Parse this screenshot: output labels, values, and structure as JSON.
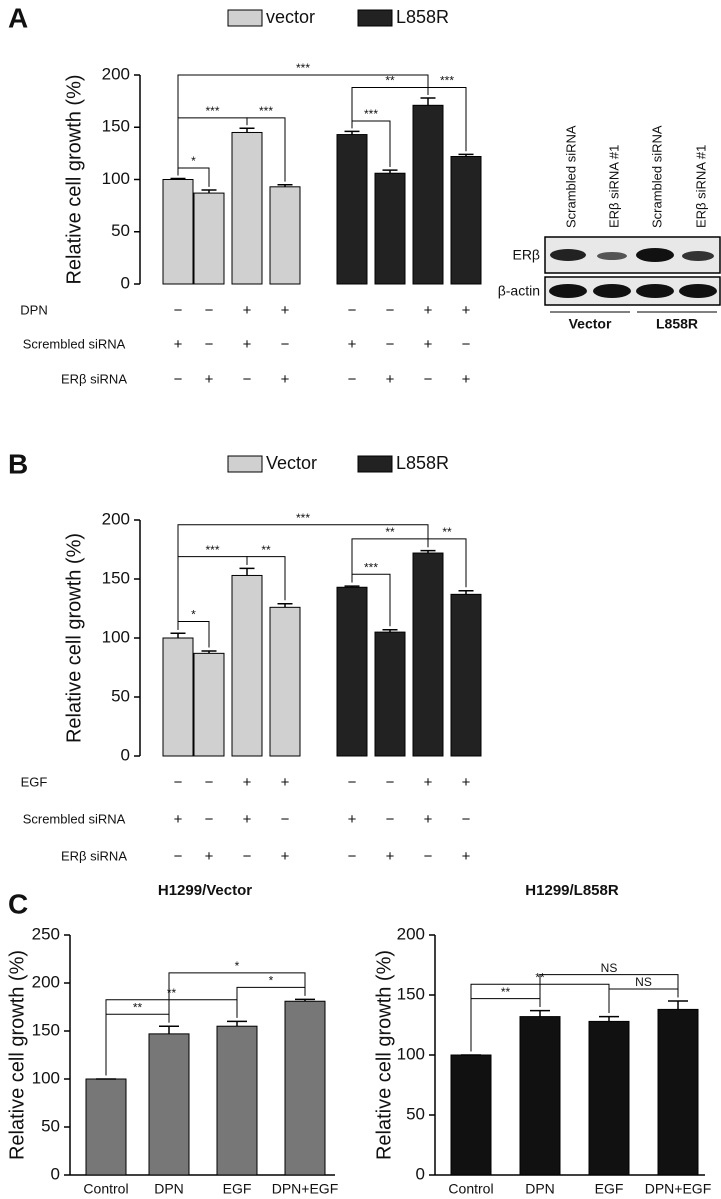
{
  "chart_data": [
    {
      "type": "bar",
      "panel_label": "A",
      "ylabel": "Relative cell growth (%)",
      "ylim": [
        0,
        200
      ],
      "yticks": [
        0,
        50,
        100,
        150,
        200
      ],
      "series": [
        {
          "name": "vector",
          "color": "#d0d0d0",
          "values": [
            100,
            87,
            145,
            93,
            null,
            null,
            null,
            null
          ],
          "errors": [
            1,
            3,
            4,
            2,
            null,
            null,
            null,
            null
          ]
        },
        {
          "name": "L858R",
          "color": "#222222",
          "values": [
            null,
            null,
            null,
            null,
            143,
            106,
            171,
            122
          ],
          "errors": [
            null,
            null,
            null,
            null,
            3,
            3,
            7,
            2
          ]
        }
      ],
      "annotations": [
        {
          "text": "*",
          "from": 0,
          "to": 1
        },
        {
          "text": "***",
          "from": 0,
          "to": 2
        },
        {
          "text": "***",
          "from": 2,
          "to": 3
        },
        {
          "text": "***",
          "from": 4,
          "to": 5
        },
        {
          "text": "**",
          "from": 4,
          "to": 6
        },
        {
          "text": "***",
          "from": 6,
          "to": 7
        },
        {
          "text": "***",
          "from": 0,
          "to": 6
        }
      ],
      "conditions": [
        {
          "label": "DPN",
          "signs": [
            "−",
            "−",
            "+",
            "+",
            "−",
            "−",
            "+",
            "+"
          ]
        },
        {
          "label": "Scrembled siRNA",
          "signs": [
            "+",
            "−",
            "+",
            "−",
            "+",
            "−",
            "+",
            "−"
          ]
        },
        {
          "label": "ERβ siRNA",
          "signs": [
            "−",
            "+",
            "−",
            "+",
            "−",
            "+",
            "−",
            "+"
          ]
        }
      ]
    },
    {
      "type": "bar",
      "panel_label": "B",
      "ylabel": "Relative cell growth (%)",
      "ylim": [
        0,
        200
      ],
      "yticks": [
        0,
        50,
        100,
        150,
        200
      ],
      "series": [
        {
          "name": "Vector",
          "color": "#d0d0d0",
          "values": [
            100,
            87,
            153,
            126,
            null,
            null,
            null,
            null
          ],
          "errors": [
            4,
            2,
            6,
            3,
            null,
            null,
            null,
            null
          ]
        },
        {
          "name": "L858R",
          "color": "#222222",
          "values": [
            null,
            null,
            null,
            null,
            143,
            105,
            172,
            137
          ],
          "errors": [
            null,
            null,
            null,
            null,
            1,
            2,
            2,
            3
          ]
        }
      ],
      "annotations": [
        {
          "text": "*",
          "from": 0,
          "to": 1
        },
        {
          "text": "***",
          "from": 0,
          "to": 2
        },
        {
          "text": "**",
          "from": 2,
          "to": 3
        },
        {
          "text": "***",
          "from": 4,
          "to": 5
        },
        {
          "text": "**",
          "from": 4,
          "to": 6
        },
        {
          "text": "**",
          "from": 6,
          "to": 7
        },
        {
          "text": "***",
          "from": 0,
          "to": 6
        }
      ],
      "conditions": [
        {
          "label": "EGF",
          "signs": [
            "−",
            "−",
            "+",
            "+",
            "−",
            "−",
            "+",
            "+"
          ]
        },
        {
          "label": "Scrembled siRNA",
          "signs": [
            "+",
            "−",
            "+",
            "−",
            "+",
            "−",
            "+",
            "−"
          ]
        },
        {
          "label": "ERβ siRNA",
          "signs": [
            "−",
            "+",
            "−",
            "+",
            "−",
            "+",
            "−",
            "+"
          ]
        }
      ]
    },
    {
      "type": "bar",
      "panel_label": "C",
      "title": "H1299/Vector",
      "ylabel": "Relative cell growth (%)",
      "ylim": [
        0,
        250
      ],
      "yticks": [
        0,
        50,
        100,
        150,
        200,
        250
      ],
      "categories": [
        "Control",
        "DPN",
        "EGF",
        "DPN+EGF"
      ],
      "series": [
        {
          "color": "#777777",
          "values": [
            100,
            147,
            155,
            181
          ],
          "errors": [
            0,
            8,
            5,
            2
          ]
        }
      ],
      "annotations": [
        {
          "text": "**",
          "from": 0,
          "to": 1
        },
        {
          "text": "**",
          "from": 0,
          "to": 2
        },
        {
          "text": "*",
          "from": 2,
          "to": 3
        },
        {
          "text": "*",
          "from": 1,
          "to": 3
        }
      ]
    },
    {
      "type": "bar",
      "title": "H1299/L858R",
      "ylabel": "Relative cell growth (%)",
      "ylim": [
        0,
        200
      ],
      "yticks": [
        0,
        50,
        100,
        150,
        200
      ],
      "categories": [
        "Control",
        "DPN",
        "EGF",
        "DPN+EGF"
      ],
      "series": [
        {
          "color": "#111111",
          "values": [
            100,
            132,
            128,
            138
          ],
          "errors": [
            0,
            5,
            4,
            7
          ]
        }
      ],
      "annotations": [
        {
          "text": "**",
          "from": 0,
          "to": 1
        },
        {
          "text": "**",
          "from": 0,
          "to": 2
        },
        {
          "text": "NS",
          "from": 2,
          "to": 3
        },
        {
          "text": "NS",
          "from": 1,
          "to": 3
        }
      ]
    }
  ],
  "blot": {
    "lanes": [
      "Scrambled siRNA",
      "ERβ siRNA #1",
      "Scrambled siRNA",
      "ERβ siRNA #1"
    ],
    "rows": [
      "ERβ",
      "β-actin"
    ],
    "groups": [
      "Vector",
      "L858R"
    ]
  }
}
